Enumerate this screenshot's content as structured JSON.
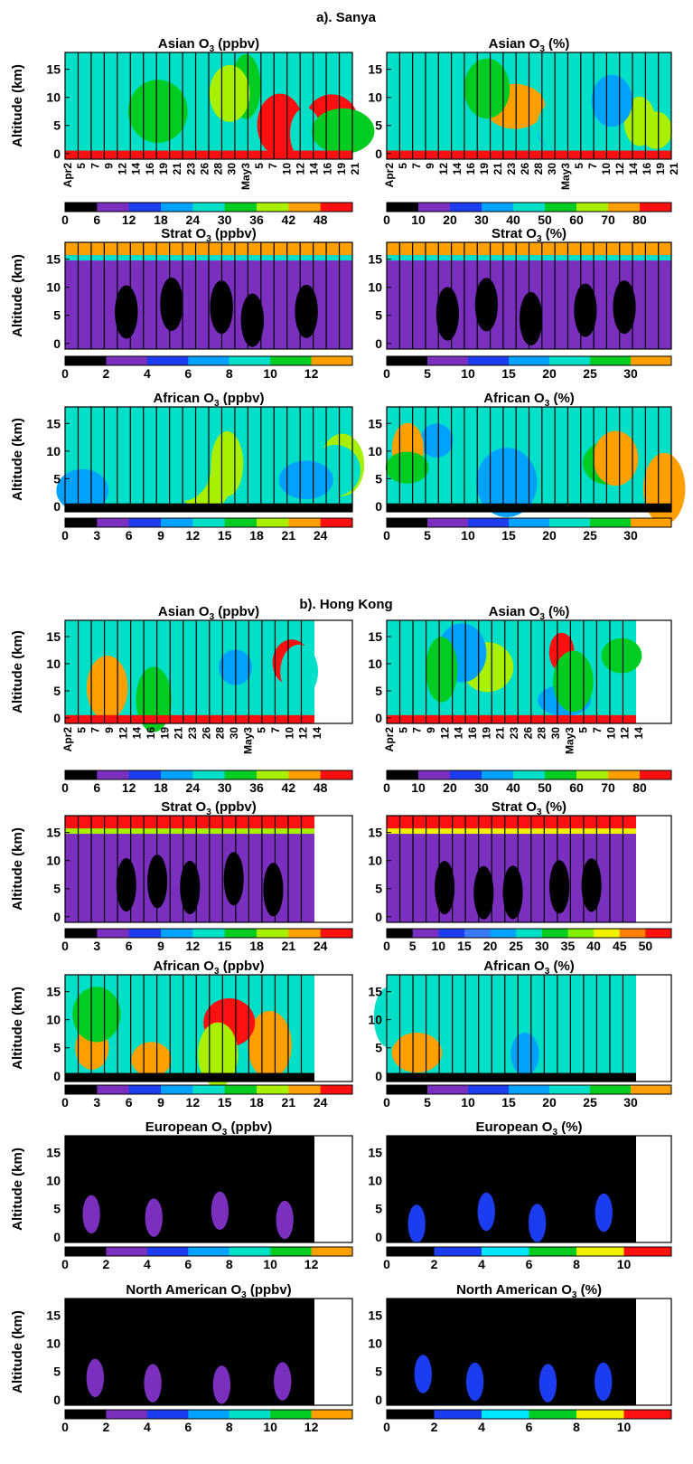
{
  "sections": [
    {
      "title": "a). Sanya"
    },
    {
      "title": "b). Hong Kong"
    }
  ],
  "chart_data": [
    {
      "type": "heatmap",
      "site": "Sanya",
      "title": "Asian O3 (ppbv)",
      "title_main": "Asian O",
      "title_sub": "3",
      "title_unit": " (ppbv)",
      "ylabel": "Altitude (km)",
      "yticks": [
        "0",
        "5",
        "10",
        "15"
      ],
      "ylim": [
        -1,
        18
      ],
      "xticks": [
        "Apr2",
        "5",
        "7",
        "9",
        "12",
        "14",
        "16",
        "19",
        "21",
        "23",
        "26",
        "28",
        "30",
        "May3",
        "5",
        "7",
        "10",
        "12",
        "14",
        "16",
        "19",
        "21"
      ],
      "colorbar": {
        "ticks": [
          "0",
          "6",
          "12",
          "18",
          "24",
          "30",
          "36",
          "42",
          "48"
        ],
        "colors": [
          "#000000",
          "#7a2fbe",
          "#1c3cf0",
          "#00a2ff",
          "#00e0c8",
          "#00cc22",
          "#a8f000",
          "#ffa000",
          "#ff1010"
        ]
      }
    },
    {
      "type": "heatmap",
      "site": "Sanya",
      "title": "Asian O3 (%)",
      "title_main": "Asian O",
      "title_sub": "3",
      "title_unit": " (%)",
      "yticks": [
        "0",
        "5",
        "10",
        "15"
      ],
      "ylim": [
        -1,
        18
      ],
      "xticks": [
        "Apr2",
        "5",
        "7",
        "9",
        "12",
        "14",
        "16",
        "19",
        "21",
        "23",
        "26",
        "28",
        "30",
        "May3",
        "5",
        "7",
        "10",
        "12",
        "14",
        "16",
        "19",
        "21"
      ],
      "colorbar": {
        "ticks": [
          "0",
          "10",
          "20",
          "30",
          "40",
          "50",
          "60",
          "70",
          "80"
        ],
        "colors": [
          "#000000",
          "#7a2fbe",
          "#1c3cf0",
          "#00a2ff",
          "#00e0c8",
          "#00cc22",
          "#a8f000",
          "#ffa000",
          "#ff1010"
        ]
      }
    },
    {
      "type": "heatmap",
      "site": "Sanya",
      "title": "Strat O3 (ppbv)",
      "title_main": "Strat O",
      "title_sub": "3",
      "title_unit": " (ppbv)",
      "ylabel": "Altitude (km)",
      "yticks": [
        "0",
        "5",
        "10",
        "15"
      ],
      "ylim": [
        -1,
        18
      ],
      "colorbar": {
        "ticks": [
          "0",
          "2",
          "4",
          "6",
          "8",
          "10",
          "12"
        ],
        "colors": [
          "#000000",
          "#7a2fbe",
          "#1c3cf0",
          "#00a2ff",
          "#00e0c8",
          "#00cc22",
          "#ffa000"
        ]
      }
    },
    {
      "type": "heatmap",
      "site": "Sanya",
      "title": "Strat O3 (%)",
      "title_main": "Strat O",
      "title_sub": "3",
      "title_unit": " (%)",
      "yticks": [
        "0",
        "5",
        "10",
        "15"
      ],
      "ylim": [
        -1,
        18
      ],
      "colorbar": {
        "ticks": [
          "0",
          "5",
          "10",
          "15",
          "20",
          "25",
          "30"
        ],
        "colors": [
          "#000000",
          "#7a2fbe",
          "#1c3cf0",
          "#00a2ff",
          "#00e0c8",
          "#00cc22",
          "#ffa000"
        ]
      }
    },
    {
      "type": "heatmap",
      "site": "Sanya",
      "title": "African O3 (ppbv)",
      "title_main": "African O",
      "title_sub": "3",
      "title_unit": " (ppbv)",
      "ylabel": "Altitude (km)",
      "yticks": [
        "0",
        "5",
        "10",
        "15"
      ],
      "ylim": [
        -1,
        18
      ],
      "colorbar": {
        "ticks": [
          "0",
          "3",
          "6",
          "9",
          "12",
          "15",
          "18",
          "21",
          "24"
        ],
        "colors": [
          "#000000",
          "#7a2fbe",
          "#1c3cf0",
          "#00a2ff",
          "#00e0c8",
          "#00cc22",
          "#a8f000",
          "#ffa000",
          "#ff1010"
        ]
      }
    },
    {
      "type": "heatmap",
      "site": "Sanya",
      "title": "African O3 (%)",
      "title_main": "African O",
      "title_sub": "3",
      "title_unit": " (%)",
      "yticks": [
        "0",
        "5",
        "10",
        "15"
      ],
      "ylim": [
        -1,
        18
      ],
      "colorbar": {
        "ticks": [
          "0",
          "5",
          "10",
          "15",
          "20",
          "25",
          "30"
        ],
        "colors": [
          "#000000",
          "#7a2fbe",
          "#1c3cf0",
          "#00a2ff",
          "#00e0c8",
          "#00cc22",
          "#ffa000"
        ]
      }
    },
    {
      "type": "heatmap",
      "site": "Hong Kong",
      "title": "Asian O3 (ppbv)",
      "title_main": "Asian O",
      "title_sub": "3",
      "title_unit": " (ppbv)",
      "ylabel": "Altitude (km)",
      "yticks": [
        "0",
        "5",
        "10",
        "15"
      ],
      "ylim": [
        -1,
        18
      ],
      "xticks": [
        "Apr2",
        "5",
        "7",
        "9",
        "12",
        "14",
        "16",
        "19",
        "21",
        "23",
        "26",
        "28",
        "30",
        "May3",
        "5",
        "7",
        "10",
        "12",
        "14"
      ],
      "colorbar": {
        "ticks": [
          "0",
          "6",
          "12",
          "18",
          "24",
          "30",
          "36",
          "42",
          "48"
        ],
        "colors": [
          "#000000",
          "#7a2fbe",
          "#1c3cf0",
          "#00a2ff",
          "#00e0c8",
          "#00cc22",
          "#a8f000",
          "#ffa000",
          "#ff1010"
        ]
      }
    },
    {
      "type": "heatmap",
      "site": "Hong Kong",
      "title": "Asian O3 (%)",
      "title_main": "Asian O",
      "title_sub": "3",
      "title_unit": " (%)",
      "yticks": [
        "0",
        "5",
        "10",
        "15"
      ],
      "ylim": [
        -1,
        18
      ],
      "xticks": [
        "Apr2",
        "5",
        "7",
        "9",
        "12",
        "14",
        "16",
        "19",
        "21",
        "23",
        "26",
        "28",
        "30",
        "May3",
        "5",
        "7",
        "10",
        "12",
        "14"
      ],
      "colorbar": {
        "ticks": [
          "0",
          "10",
          "20",
          "30",
          "40",
          "50",
          "60",
          "70",
          "80"
        ],
        "colors": [
          "#000000",
          "#7a2fbe",
          "#1c3cf0",
          "#00a2ff",
          "#00e0c8",
          "#00cc22",
          "#a8f000",
          "#ffa000",
          "#ff1010"
        ]
      }
    },
    {
      "type": "heatmap",
      "site": "Hong Kong",
      "title": "Strat O3 (ppbv)",
      "title_main": "Strat O",
      "title_sub": "3",
      "title_unit": " (ppbv)",
      "ylabel": "Altitude (km)",
      "yticks": [
        "0",
        "5",
        "10",
        "15"
      ],
      "ylim": [
        -1,
        18
      ],
      "colorbar": {
        "ticks": [
          "0",
          "3",
          "6",
          "9",
          "12",
          "15",
          "18",
          "21",
          "24"
        ],
        "colors": [
          "#000000",
          "#7a2fbe",
          "#1c3cf0",
          "#00a2ff",
          "#00e0c8",
          "#00cc22",
          "#a8f000",
          "#ffa000",
          "#ff1010"
        ]
      }
    },
    {
      "type": "heatmap",
      "site": "Hong Kong",
      "title": "Strat O3 (%)",
      "title_main": "Strat O",
      "title_sub": "3",
      "title_unit": " (%)",
      "yticks": [
        "0",
        "5",
        "10",
        "15"
      ],
      "ylim": [
        -1,
        18
      ],
      "colorbar": {
        "ticks": [
          "0",
          "5",
          "10",
          "15",
          "20",
          "25",
          "30",
          "35",
          "40",
          "45",
          "50"
        ],
        "colors": [
          "#000000",
          "#7a2fbe",
          "#1c3cf0",
          "#3a78ff",
          "#00a2ff",
          "#00e0c8",
          "#00cc22",
          "#7ff000",
          "#f0f000",
          "#ff8000",
          "#ff1010"
        ]
      }
    },
    {
      "type": "heatmap",
      "site": "Hong Kong",
      "title": "African O3 (ppbv)",
      "title_main": "African O",
      "title_sub": "3",
      "title_unit": " (ppbv)",
      "ylabel": "Altitude (km)",
      "yticks": [
        "0",
        "5",
        "10",
        "15"
      ],
      "ylim": [
        -1,
        18
      ],
      "colorbar": {
        "ticks": [
          "0",
          "3",
          "6",
          "9",
          "12",
          "15",
          "18",
          "21",
          "24"
        ],
        "colors": [
          "#000000",
          "#7a2fbe",
          "#1c3cf0",
          "#00a2ff",
          "#00e0c8",
          "#00cc22",
          "#a8f000",
          "#ffa000",
          "#ff1010"
        ]
      }
    },
    {
      "type": "heatmap",
      "site": "Hong Kong",
      "title": "African O3 (%)",
      "title_main": "African O",
      "title_sub": "3",
      "title_unit": " (%)",
      "yticks": [
        "0",
        "5",
        "10",
        "15"
      ],
      "ylim": [
        -1,
        18
      ],
      "colorbar": {
        "ticks": [
          "0",
          "5",
          "10",
          "15",
          "20",
          "25",
          "30"
        ],
        "colors": [
          "#000000",
          "#7a2fbe",
          "#1c3cf0",
          "#00a2ff",
          "#00e0c8",
          "#00cc22",
          "#ffa000"
        ]
      }
    },
    {
      "type": "heatmap",
      "site": "Hong Kong",
      "title": "European O3 (ppbv)",
      "title_main": "European O",
      "title_sub": "3",
      "title_unit": " (ppbv)",
      "ylabel": "Altitude (km)",
      "yticks": [
        "0",
        "5",
        "10",
        "15"
      ],
      "ylim": [
        -1,
        18
      ],
      "colorbar": {
        "ticks": [
          "0",
          "2",
          "4",
          "6",
          "8",
          "10",
          "12"
        ],
        "colors": [
          "#000000",
          "#7a2fbe",
          "#1c3cf0",
          "#00a2ff",
          "#00e0c8",
          "#00cc22",
          "#ffa000"
        ]
      }
    },
    {
      "type": "heatmap",
      "site": "Hong Kong",
      "title": "European O3 (%)",
      "title_main": "European O",
      "title_sub": "3",
      "title_unit": " (%)",
      "yticks": [
        "0",
        "5",
        "10",
        "15"
      ],
      "ylim": [
        -1,
        18
      ],
      "colorbar": {
        "ticks": [
          "0",
          "2",
          "4",
          "6",
          "8",
          "10"
        ],
        "colors": [
          "#000000",
          "#1c3cf0",
          "#00e8ff",
          "#00cc22",
          "#f0f000",
          "#ff1010"
        ]
      }
    },
    {
      "type": "heatmap",
      "site": "Hong Kong",
      "title": "North American O3 (ppbv)",
      "title_main": "North American O",
      "title_sub": "3",
      "title_unit": " (ppbv)",
      "ylabel": "Altitude (km)",
      "yticks": [
        "0",
        "5",
        "10",
        "15"
      ],
      "ylim": [
        -1,
        18
      ],
      "colorbar": {
        "ticks": [
          "0",
          "2",
          "4",
          "6",
          "8",
          "10",
          "12"
        ],
        "colors": [
          "#000000",
          "#7a2fbe",
          "#1c3cf0",
          "#00a2ff",
          "#00e0c8",
          "#00cc22",
          "#ffa000"
        ]
      }
    },
    {
      "type": "heatmap",
      "site": "Hong Kong",
      "title": "North American O3 (%)",
      "title_main": "North American O",
      "title_sub": "3",
      "title_unit": " (%)",
      "yticks": [
        "0",
        "5",
        "10",
        "15"
      ],
      "ylim": [
        -1,
        18
      ],
      "colorbar": {
        "ticks": [
          "0",
          "2",
          "4",
          "6",
          "8",
          "10"
        ],
        "colors": [
          "#000000",
          "#1c3cf0",
          "#00e8ff",
          "#00cc22",
          "#f0f000",
          "#ff1010"
        ]
      }
    }
  ]
}
